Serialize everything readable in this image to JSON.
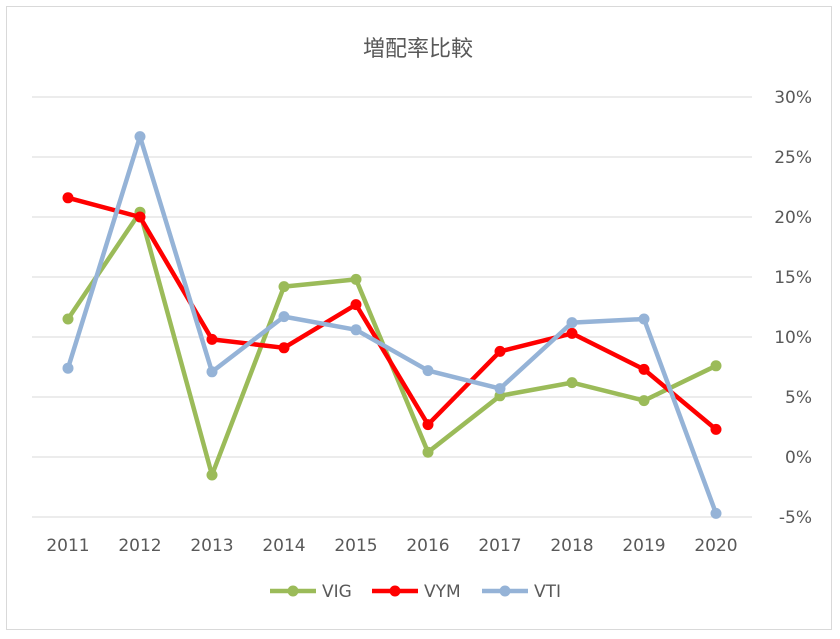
{
  "chart_data": {
    "type": "line",
    "title": "増配率比較",
    "categories": [
      "2011",
      "2012",
      "2013",
      "2014",
      "2015",
      "2016",
      "2017",
      "2018",
      "2019",
      "2020"
    ],
    "y_axis": {
      "position": "right",
      "min": -5,
      "max": 30,
      "step": 5,
      "tick_labels": [
        "-5%",
        "0%",
        "5%",
        "10%",
        "15%",
        "20%",
        "25%",
        "30%"
      ]
    },
    "grid": true,
    "legend": "bottom",
    "series": [
      {
        "name": "VIG",
        "color": "#9bbb59",
        "values": [
          11.5,
          20.4,
          -1.5,
          14.2,
          14.8,
          0.4,
          5.1,
          6.2,
          4.7,
          7.6
        ]
      },
      {
        "name": "VYM",
        "color": "#ff0000",
        "values": [
          21.6,
          20.0,
          9.8,
          9.1,
          12.7,
          2.7,
          8.8,
          10.3,
          7.3,
          2.3
        ]
      },
      {
        "name": "VTI",
        "color": "#95b3d7",
        "values": [
          7.4,
          26.7,
          7.1,
          11.7,
          10.6,
          7.2,
          5.7,
          11.2,
          11.5,
          -4.7
        ]
      }
    ]
  }
}
